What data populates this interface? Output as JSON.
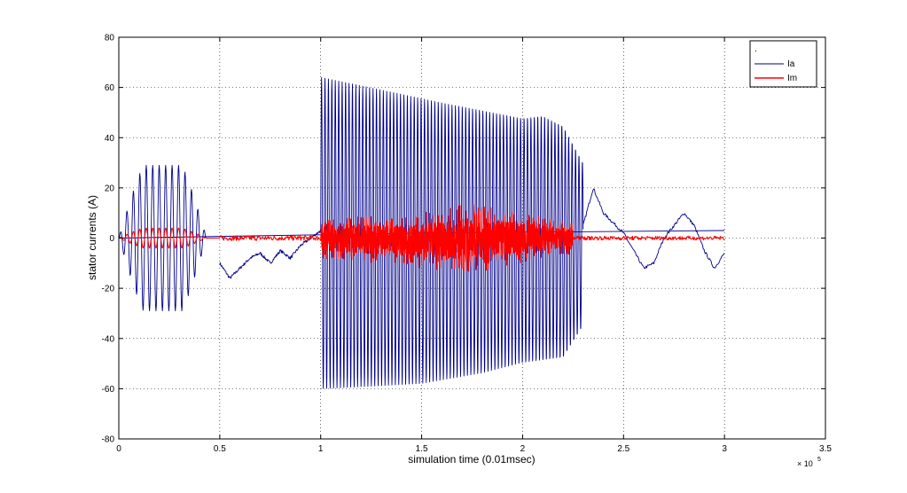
{
  "chart_data": {
    "type": "line",
    "title": "",
    "xlabel": "simulation time (0.01msec)",
    "ylabel": "stator currents (A)",
    "x_multiplier_base": "× 10",
    "x_multiplier_exp": "5",
    "xlim": [
      0,
      3.5
    ],
    "ylim": [
      -80,
      80
    ],
    "xticks": [
      0,
      0.5,
      1,
      1.5,
      2,
      2.5,
      3,
      3.5
    ],
    "xtick_labels": [
      "0",
      "0.5",
      "1",
      "1.5",
      "2",
      "2.5",
      "3",
      "3.5"
    ],
    "yticks": [
      -80,
      -60,
      -40,
      -20,
      0,
      20,
      40,
      60,
      80
    ],
    "ytick_labels": [
      "-80",
      "-60",
      "-40",
      "-20",
      "0",
      "20",
      "40",
      "60",
      "80"
    ],
    "grid": true,
    "legend": {
      "position": "top-right",
      "header": ".",
      "entries": [
        "Ia",
        "Im"
      ]
    },
    "series": [
      {
        "name": "Ia",
        "color": "#00008b",
        "segments": [
          {
            "x_start": 0.0,
            "x_end": 0.5,
            "kind": "oscillation",
            "peak_amplitude": 29,
            "period": 0.032
          },
          {
            "x_start": 0.5,
            "x_end": 1.0,
            "kind": "drift",
            "points": [
              [
                0.5,
                -10
              ],
              [
                0.55,
                -16
              ],
              [
                0.6,
                -12
              ],
              [
                0.65,
                -8
              ],
              [
                0.7,
                -6
              ],
              [
                0.75,
                -10
              ],
              [
                0.8,
                -5
              ],
              [
                0.85,
                -8
              ],
              [
                0.9,
                -3
              ],
              [
                0.95,
                0
              ],
              [
                1.0,
                3
              ]
            ]
          },
          {
            "x_start": 1.0,
            "x_end": 2.3,
            "kind": "oscillation",
            "envelope_top": [
              [
                1.0,
                64
              ],
              [
                1.6,
                54
              ],
              [
                2.0,
                48
              ],
              [
                2.1,
                49
              ],
              [
                2.2,
                45
              ],
              [
                2.3,
                30
              ]
            ],
            "envelope_bottom": [
              [
                1.0,
                -60
              ],
              [
                1.5,
                -58
              ],
              [
                1.8,
                -54
              ],
              [
                2.0,
                -50
              ],
              [
                2.2,
                -48
              ],
              [
                2.3,
                -35
              ]
            ],
            "period": 0.017
          },
          {
            "x_start": 2.3,
            "x_end": 3.0,
            "kind": "drift",
            "points": [
              [
                2.3,
                5
              ],
              [
                2.35,
                20
              ],
              [
                2.4,
                10
              ],
              [
                2.45,
                6
              ],
              [
                2.5,
                2
              ],
              [
                2.55,
                -5
              ],
              [
                2.6,
                -12
              ],
              [
                2.65,
                -10
              ],
              [
                2.7,
                0
              ],
              [
                2.75,
                5
              ],
              [
                2.8,
                10
              ],
              [
                2.85,
                5
              ],
              [
                2.9,
                -5
              ],
              [
                2.95,
                -12
              ],
              [
                3.0,
                -6
              ]
            ]
          },
          {
            "x_start": 0.0,
            "x_end": 3.0,
            "kind": "reference_line",
            "points": [
              [
                0,
                0
              ],
              [
                1.0,
                1.5
              ],
              [
                2.0,
                2.5
              ],
              [
                3.0,
                3
              ]
            ]
          }
        ]
      },
      {
        "name": "Im",
        "color": "#ff0000",
        "segments": [
          {
            "x_start": 0.0,
            "x_end": 0.5,
            "kind": "oscillation",
            "peak_amplitude": 4,
            "period": 0.032
          },
          {
            "x_start": 0.5,
            "x_end": 1.0,
            "kind": "noise",
            "peak_amplitude": 1
          },
          {
            "x_start": 1.0,
            "x_end": 2.25,
            "kind": "dense_noise",
            "envelope_top": [
              [
                1.0,
                8
              ],
              [
                1.5,
                10
              ],
              [
                1.75,
                14
              ],
              [
                2.0,
                10
              ],
              [
                2.25,
                6
              ]
            ],
            "envelope_bottom": [
              [
                1.0,
                -8
              ],
              [
                1.5,
                -12
              ],
              [
                1.75,
                -14
              ],
              [
                2.0,
                -10
              ],
              [
                2.25,
                -6
              ]
            ]
          },
          {
            "x_start": 2.25,
            "x_end": 3.0,
            "kind": "noise",
            "peak_amplitude": 0.8
          }
        ]
      }
    ]
  }
}
